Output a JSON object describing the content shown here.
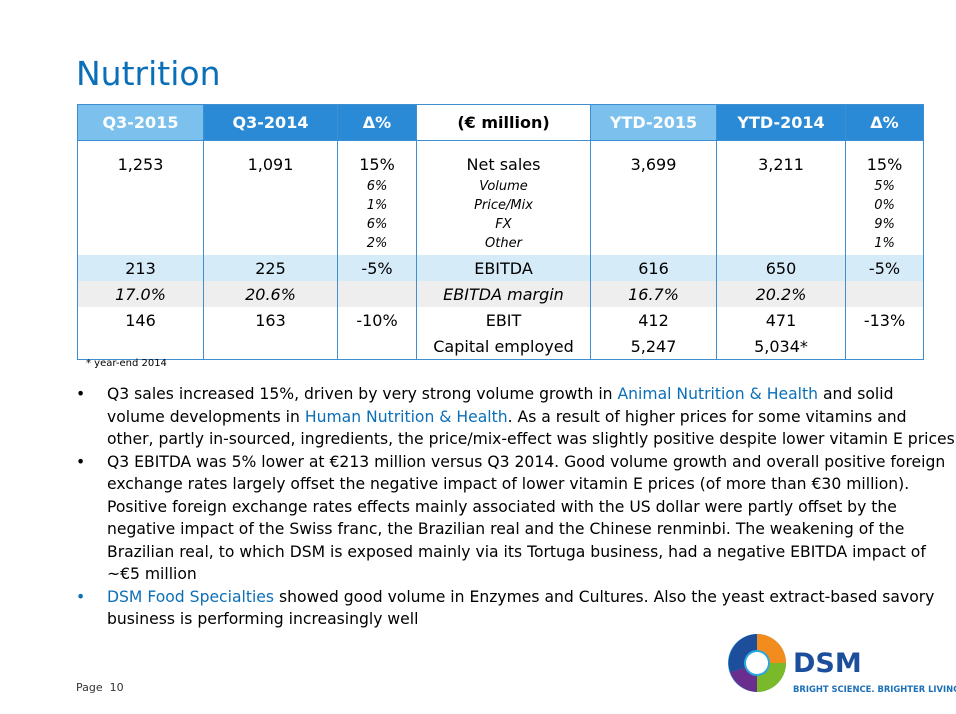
{
  "slide": {
    "title": "Nutrition",
    "footnote": "* year-end 2014",
    "page_label": "Page",
    "page_number": "10"
  },
  "table": {
    "headers": [
      "Q3-2015",
      "Q3-2014",
      "Δ%",
      "(€ million)",
      "YTD-2015",
      "YTD-2014",
      "Δ%"
    ],
    "net_sales": [
      "1,253",
      "1,091",
      "15%",
      "Net sales",
      "3,699",
      "3,211",
      "15%"
    ],
    "breakdown": {
      "q3_delta": [
        "6%",
        "1%",
        "6%",
        "2%"
      ],
      "labels": [
        "Volume",
        "Price/Mix",
        "FX",
        "Other"
      ],
      "ytd_delta": [
        "5%",
        "0%",
        "9%",
        "1%"
      ]
    },
    "ebitda": [
      "213",
      "225",
      "-5%",
      "EBITDA",
      "616",
      "650",
      "-5%"
    ],
    "ebitda_margin": [
      "17.0%",
      "20.6%",
      "",
      "EBITDA margin",
      "16.7%",
      "20.2%",
      ""
    ],
    "ebit": [
      "146",
      "163",
      "-10%",
      "EBIT",
      "412",
      "471",
      "-13%"
    ],
    "capital_employed": [
      "",
      "",
      "",
      "Capital employed",
      "5,247",
      "5,034*",
      ""
    ]
  },
  "bullets": [
    {
      "marker": "•",
      "parts": [
        {
          "text": "Q3 sales increased 15%, driven by very strong volume growth in ",
          "highlight": false
        },
        {
          "text": "Animal Nutrition & Health",
          "highlight": true
        },
        {
          "text": " and solid volume developments in ",
          "highlight": false
        },
        {
          "text": "Human Nutrition & Health",
          "highlight": true
        },
        {
          "text": ". As a result of higher prices for some vitamins and other, partly in-sourced, ingredients, the price/mix-effect was slightly positive despite lower vitamin E prices",
          "highlight": false
        }
      ]
    },
    {
      "marker": "•",
      "parts": [
        {
          "text": "Q3 EBITDA was 5% lower at €213 million versus Q3 2014. Good volume growth and overall positive foreign exchange rates largely offset the negative impact of lower vitamin E prices (of more than €30 million). Positive foreign exchange rates effects mainly associated with the US dollar were partly offset by the negative impact of the Swiss franc, the Brazilian real and the Chinese renminbi. The weakening of the Brazilian real, to which DSM is exposed mainly via its Tortuga business, had a negative EBITDA impact of ~€5 million",
          "highlight": false
        }
      ]
    },
    {
      "marker": "•",
      "marker_blue": true,
      "parts": [
        {
          "text": "DSM Food Specialties",
          "highlight": true
        },
        {
          "text": " showed good volume in Enzymes and Cultures. Also the yeast extract-based savory business is performing increasingly well",
          "highlight": false
        }
      ]
    }
  ],
  "logo": {
    "name": "DSM",
    "tagline": "BRIGHT SCIENCE. BRIGHTER LIVING.",
    "colors": {
      "blue": "#1c4e9b",
      "orange": "#f28c1c",
      "green": "#7ab929",
      "cyan": "#29a8e0",
      "purple": "#6a2e8e"
    }
  }
}
